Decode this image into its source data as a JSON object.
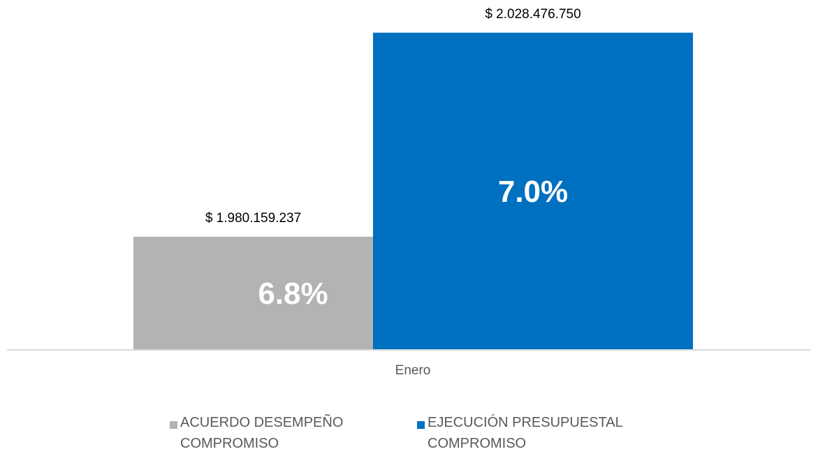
{
  "chart_data": {
    "type": "bar",
    "categories": [
      "Enero"
    ],
    "series": [
      {
        "name": "ACUERDO DESEMPEÑO COMPROMISO",
        "color": "#b3b3b3",
        "values": [
          1980159237
        ],
        "value_labels": [
          "$ 1.980.159.237"
        ],
        "percent_labels": [
          "6.8%"
        ]
      },
      {
        "name": "EJECUCIÓN PRESUPUESTAL COMPROMISO",
        "color": "#0070c0",
        "values": [
          2028476750
        ],
        "value_labels": [
          "$ 2.028.476.750"
        ],
        "percent_labels": [
          "7.0%"
        ]
      }
    ],
    "ylim": [
      1953500000,
      2029600000
    ],
    "legend": "bottom"
  }
}
